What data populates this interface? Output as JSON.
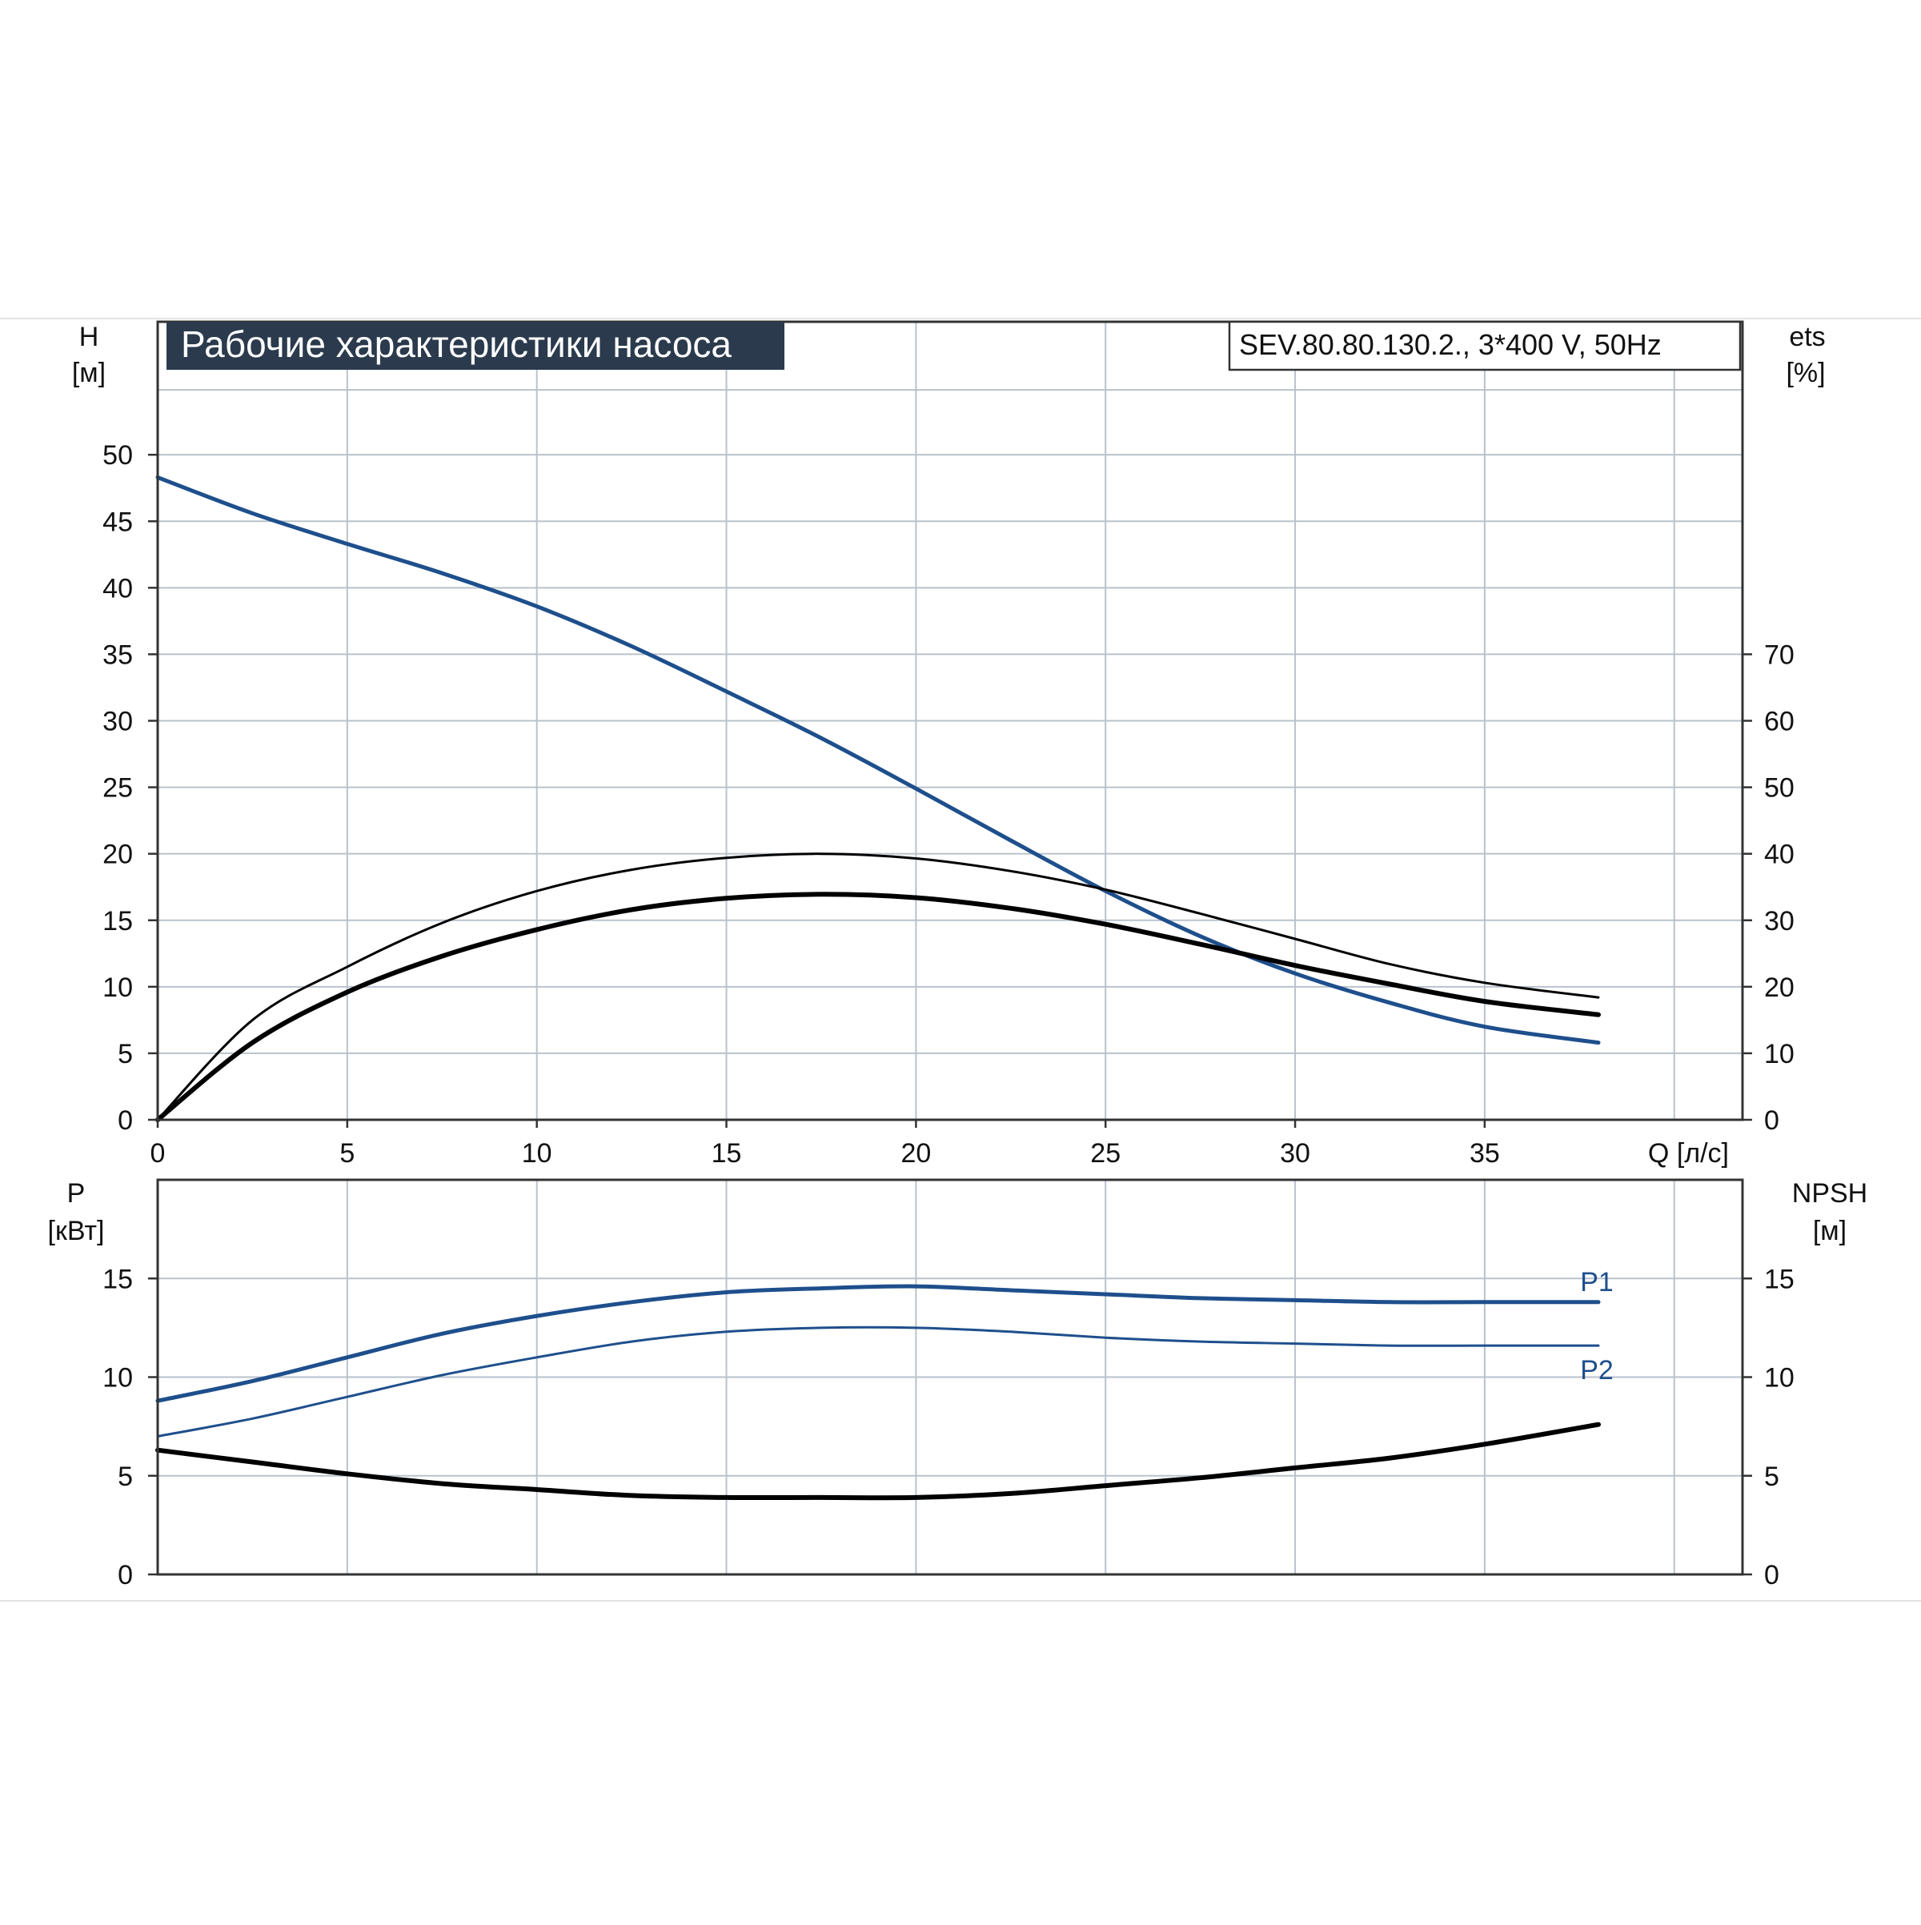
{
  "chart_data": [
    {
      "type": "line",
      "title": "Рабочие характеристики насоса",
      "model": "SEV.80.80.130.2., 3*400 V, 50Hz",
      "x_ticks": [
        "0",
        "5",
        "10",
        "15",
        "20",
        "25",
        "30",
        "35"
      ],
      "xlabel": "Q [л/с]",
      "xlim": [
        0,
        41.8
      ],
      "left_axis": {
        "label_top": "H",
        "label_unit": "[м]",
        "ylim": [
          0,
          60
        ],
        "ticks": [
          "0",
          "5",
          "10",
          "15",
          "20",
          "25",
          "30",
          "35",
          "40",
          "45",
          "50"
        ],
        "tick_values": [
          0,
          5,
          10,
          15,
          20,
          25,
          30,
          35,
          40,
          45,
          50
        ]
      },
      "right_axis": {
        "label_top": "ets",
        "label_unit": "[%]",
        "ylim": [
          0,
          120
        ],
        "ticks": [
          "0",
          "10",
          "20",
          "30",
          "40",
          "50",
          "60",
          "70"
        ],
        "tick_values": [
          0,
          10,
          20,
          30,
          40,
          50,
          60,
          70
        ]
      },
      "grid": true,
      "series": [
        {
          "axis": "left",
          "color": "#1e4f8c",
          "width": 5,
          "x": [
            0,
            2.5,
            5,
            7.5,
            10,
            12.5,
            15,
            17.5,
            20,
            22.5,
            25,
            27.5,
            30,
            32.5,
            35,
            38
          ],
          "y": [
            48.3,
            45.6,
            43.3,
            41.1,
            38.6,
            35.6,
            32.2,
            28.7,
            24.9,
            21.0,
            17.2,
            13.8,
            11.0,
            8.8,
            7.0,
            5.8
          ]
        },
        {
          "axis": "right",
          "color": "#000000",
          "width": 3,
          "x": [
            0,
            2.5,
            5,
            7.5,
            10,
            12.5,
            15,
            17.5,
            20,
            22.5,
            25,
            27.5,
            30,
            32.5,
            35,
            38
          ],
          "y": [
            0,
            15,
            23,
            29.6,
            34.4,
            37.6,
            39.4,
            40.0,
            39.3,
            37.4,
            34.6,
            31.0,
            27.2,
            23.4,
            20.6,
            18.4
          ]
        },
        {
          "axis": "right",
          "color": "#000000",
          "width": 6,
          "x": [
            0,
            2.5,
            5,
            7.5,
            10,
            12.5,
            15,
            17.5,
            20,
            22.5,
            25,
            27.5,
            30,
            32.5,
            35,
            38
          ],
          "y": [
            0,
            11.6,
            19.2,
            24.6,
            28.6,
            31.6,
            33.3,
            33.9,
            33.4,
            31.8,
            29.4,
            26.4,
            23.2,
            20.4,
            17.8,
            15.8
          ]
        }
      ]
    },
    {
      "type": "line",
      "x_ticks_values": [
        0,
        5,
        10,
        15,
        20,
        25,
        30,
        35
      ],
      "xlim": [
        0,
        41.8
      ],
      "left_axis": {
        "label_top": "P",
        "label_unit": "[кВт]",
        "ylim": [
          0,
          20
        ],
        "ticks": [
          "0",
          "5",
          "10",
          "15"
        ],
        "tick_values": [
          0,
          5,
          10,
          15
        ]
      },
      "right_axis": {
        "label_top": "NPSH",
        "label_unit": "[м]",
        "ylim": [
          0,
          20
        ],
        "ticks": [
          "0",
          "5",
          "10",
          "15"
        ],
        "tick_values": [
          0,
          5,
          10,
          15
        ]
      },
      "grid": true,
      "series": [
        {
          "name": "P1",
          "color": "#1e4f8c",
          "width": 5,
          "x": [
            0,
            2.5,
            5,
            7.5,
            10,
            12.5,
            15,
            17.5,
            20,
            22.5,
            25,
            27.5,
            30,
            32.5,
            35,
            38
          ],
          "y": [
            8.8,
            9.8,
            11.0,
            12.2,
            13.1,
            13.8,
            14.3,
            14.5,
            14.6,
            14.4,
            14.2,
            14.0,
            13.9,
            13.8,
            13.8,
            13.8
          ]
        },
        {
          "name": "P2",
          "color": "#1e4f8c",
          "width": 3,
          "x": [
            0,
            2.5,
            5,
            7.5,
            10,
            12.5,
            15,
            17.5,
            20,
            22.5,
            25,
            27.5,
            30,
            32.5,
            35,
            38
          ],
          "y": [
            7.0,
            7.9,
            9.0,
            10.1,
            11.0,
            11.8,
            12.3,
            12.5,
            12.5,
            12.3,
            12.0,
            11.8,
            11.7,
            11.6,
            11.6,
            11.6
          ]
        },
        {
          "color": "#000000",
          "width": 6,
          "x": [
            0,
            2.5,
            5,
            7.5,
            10,
            12.5,
            15,
            17.5,
            20,
            22.5,
            25,
            27.5,
            30,
            32.5,
            35,
            38
          ],
          "y": [
            6.3,
            5.7,
            5.1,
            4.6,
            4.3,
            4.0,
            3.9,
            3.9,
            3.9,
            4.1,
            4.5,
            4.9,
            5.4,
            5.9,
            6.6,
            7.6
          ]
        }
      ]
    }
  ]
}
